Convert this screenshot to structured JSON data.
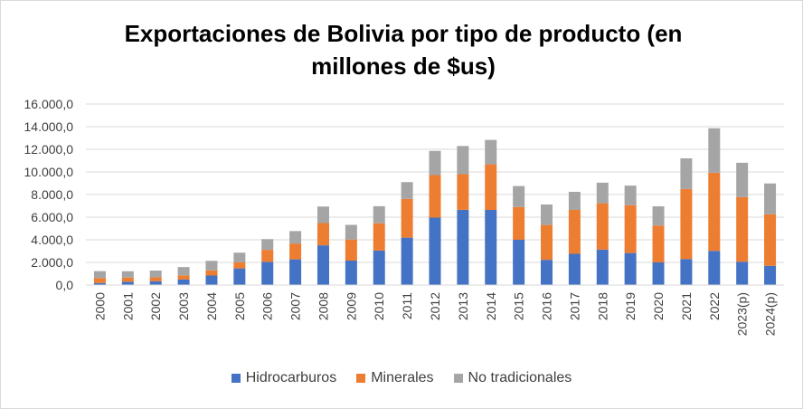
{
  "chart_data": {
    "type": "bar",
    "stacked": true,
    "title": "Exportaciones de Bolivia por tipo de producto (en millones de $us)",
    "categories": [
      "2000",
      "2001",
      "2002",
      "2003",
      "2004",
      "2005",
      "2006",
      "2007",
      "2008",
      "2009",
      "2010",
      "2011",
      "2012",
      "2013",
      "2014",
      "2015",
      "2016",
      "2017",
      "2018",
      "2019",
      "2020",
      "2021",
      "2022",
      "2023(p)",
      "2024(p)"
    ],
    "ylim": [
      0,
      16000
    ],
    "yticks": [
      "0,0",
      "2.000,0",
      "4.000,0",
      "6.000,0",
      "8.000,0",
      "10.000,0",
      "12.000,0",
      "14.000,0",
      "16.000,0"
    ],
    "grid": true,
    "legend_position": "bottom",
    "series": [
      {
        "name": "Hidrocarburos",
        "color": "#4472c4",
        "values": [
          180,
          290,
          340,
          490,
          840,
          1470,
          2050,
          2270,
          3510,
          2160,
          3050,
          4190,
          5960,
          6650,
          6640,
          4000,
          2230,
          2760,
          3130,
          2830,
          2000,
          2300,
          3020,
          2060,
          1700
        ]
      },
      {
        "name": "Minerales",
        "color": "#ed7d31",
        "values": [
          440,
          370,
          350,
          370,
          460,
          540,
          1060,
          1400,
          1970,
          1860,
          2410,
          3420,
          3760,
          3150,
          4030,
          2900,
          3080,
          3880,
          4100,
          4230,
          3260,
          6190,
          6910,
          5720,
          4560
        ]
      },
      {
        "name": "No tradicionales",
        "color": "#a5a5a5",
        "values": [
          610,
          560,
          590,
          730,
          840,
          850,
          950,
          1100,
          1460,
          1300,
          1510,
          1490,
          2140,
          2490,
          2160,
          1850,
          1810,
          1600,
          1820,
          1730,
          1700,
          2710,
          3930,
          3030,
          2720
        ]
      }
    ]
  }
}
